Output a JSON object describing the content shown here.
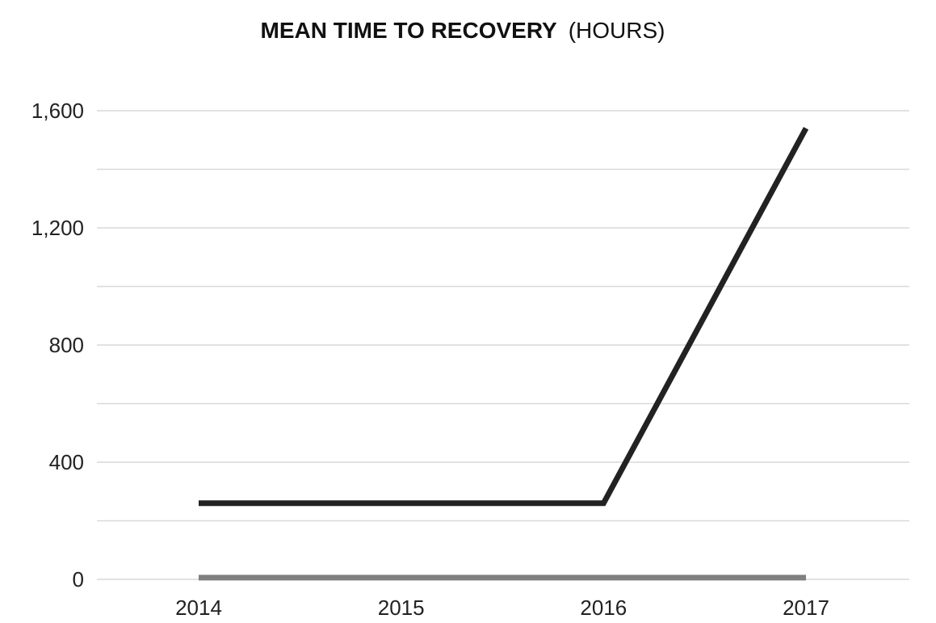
{
  "chart_data": {
    "type": "line",
    "title": "MEAN TIME TO RECOVERY",
    "subtitle": "(HOURS)",
    "categories": [
      "2014",
      "2015",
      "2016",
      "2017"
    ],
    "series": [
      {
        "values": [
          260,
          260,
          260,
          1540
        ],
        "color": "#222222"
      },
      {
        "values": [
          6,
          6,
          6,
          6
        ],
        "color": "#808080"
      }
    ],
    "ylim": [
      0,
      1600
    ],
    "y_ticks": [
      0,
      400,
      800,
      1200,
      1600
    ],
    "y_tick_labels": [
      "0",
      "400",
      "800",
      "1,200",
      "1,600"
    ],
    "grid": true,
    "legend": "none"
  }
}
